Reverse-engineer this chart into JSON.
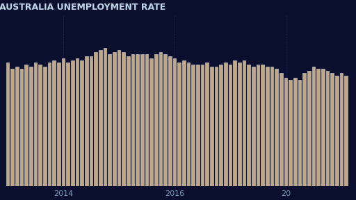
{
  "title": "AUSTRALIA UNEMPLOYMENT RATE",
  "background_color": "#0a0f2e",
  "bar_color": "#c4a882",
  "bar_edge_color": "#d0d8e8",
  "grid_color": "#1e2a5a",
  "text_color": "#8ab0d0",
  "title_color": "#c0d8e8",
  "xlabel_color": "#6a9ab8",
  "bar_width": 0.7,
  "values": [
    5.8,
    5.5,
    5.6,
    5.5,
    5.7,
    5.6,
    5.8,
    5.7,
    5.6,
    5.8,
    5.9,
    5.8,
    6.0,
    5.8,
    5.9,
    6.0,
    5.9,
    6.1,
    6.1,
    6.3,
    6.4,
    6.5,
    6.2,
    6.3,
    6.4,
    6.3,
    6.1,
    6.2,
    6.2,
    6.2,
    6.2,
    6.0,
    6.2,
    6.3,
    6.2,
    6.1,
    6.0,
    5.8,
    5.9,
    5.8,
    5.7,
    5.7,
    5.7,
    5.8,
    5.6,
    5.6,
    5.7,
    5.8,
    5.7,
    5.9,
    5.8,
    5.9,
    5.7,
    5.6,
    5.7,
    5.7,
    5.6,
    5.6,
    5.5,
    5.3,
    5.1,
    5.0,
    5.1,
    5.0,
    5.3,
    5.4,
    5.6,
    5.5,
    5.5,
    5.4,
    5.3,
    5.2,
    5.3,
    5.2
  ],
  "x_tick_positions": [
    12,
    36,
    60
  ],
  "x_tick_labels": [
    "2014",
    "2016",
    "20"
  ],
  "ylim": [
    0,
    8
  ],
  "figsize": [
    5.12,
    2.88
  ],
  "dpi": 100,
  "title_fontsize": 9,
  "tick_fontsize": 8
}
